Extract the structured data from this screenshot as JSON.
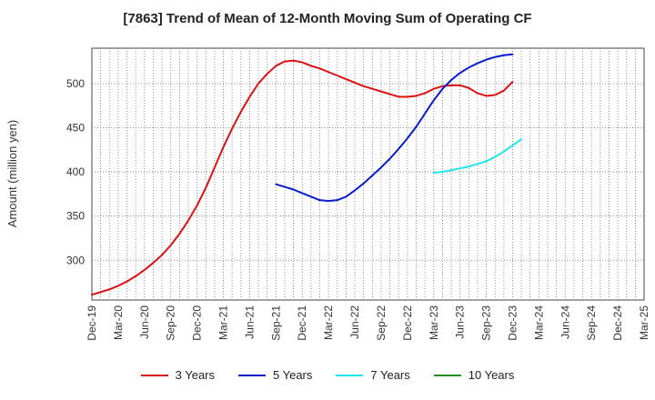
{
  "chart_data": {
    "type": "line",
    "title": "[7863]  Trend of Mean of 12-Month Moving Sum of Operating CF",
    "ylabel": "Amount (million yen)",
    "xlabel": "",
    "ylim": [
      255,
      540
    ],
    "yticks": [
      300,
      350,
      400,
      450,
      500
    ],
    "x_ticks": [
      "Dec-19",
      "Mar-20",
      "Jun-20",
      "Sep-20",
      "Dec-20",
      "Mar-21",
      "Jun-21",
      "Sep-21",
      "Dec-21",
      "Mar-22",
      "Jun-22",
      "Sep-22",
      "Dec-22",
      "Mar-23",
      "Jun-23",
      "Sep-23",
      "Dec-23",
      "Mar-24",
      "Jun-24",
      "Sep-24",
      "Dec-24",
      "Mar-25"
    ],
    "grid": true,
    "legend_position": "bottom",
    "series": [
      {
        "name": "3 Years",
        "color": "#dd1111",
        "start_index": 0,
        "values": [
          261,
          264,
          267,
          271,
          276,
          282,
          289,
          297,
          306,
          317,
          330,
          345,
          362,
          382,
          405,
          428,
          449,
          468,
          485,
          500,
          511,
          520,
          525,
          526,
          524,
          520,
          517,
          513,
          509,
          505,
          501,
          497,
          494,
          491,
          488,
          485,
          485,
          486,
          489,
          494,
          497,
          498,
          498,
          495,
          489,
          486,
          487,
          492,
          502
        ]
      },
      {
        "name": "5 Years",
        "color": "#0a1ccc",
        "start_index": 21,
        "values": [
          386,
          383,
          380,
          376,
          372,
          368,
          367,
          368,
          372,
          379,
          387,
          396,
          405,
          415,
          426,
          438,
          451,
          466,
          481,
          494,
          504,
          512,
          518,
          523,
          527,
          530,
          532,
          533
        ]
      },
      {
        "name": "7 Years",
        "color": "#22e5ee",
        "start_index": 39,
        "values": [
          399,
          400,
          402,
          404,
          406,
          409,
          412,
          417,
          423,
          430,
          437
        ]
      },
      {
        "name": "10 Years",
        "color": "#228b22",
        "start_index": 0,
        "values": []
      }
    ]
  }
}
